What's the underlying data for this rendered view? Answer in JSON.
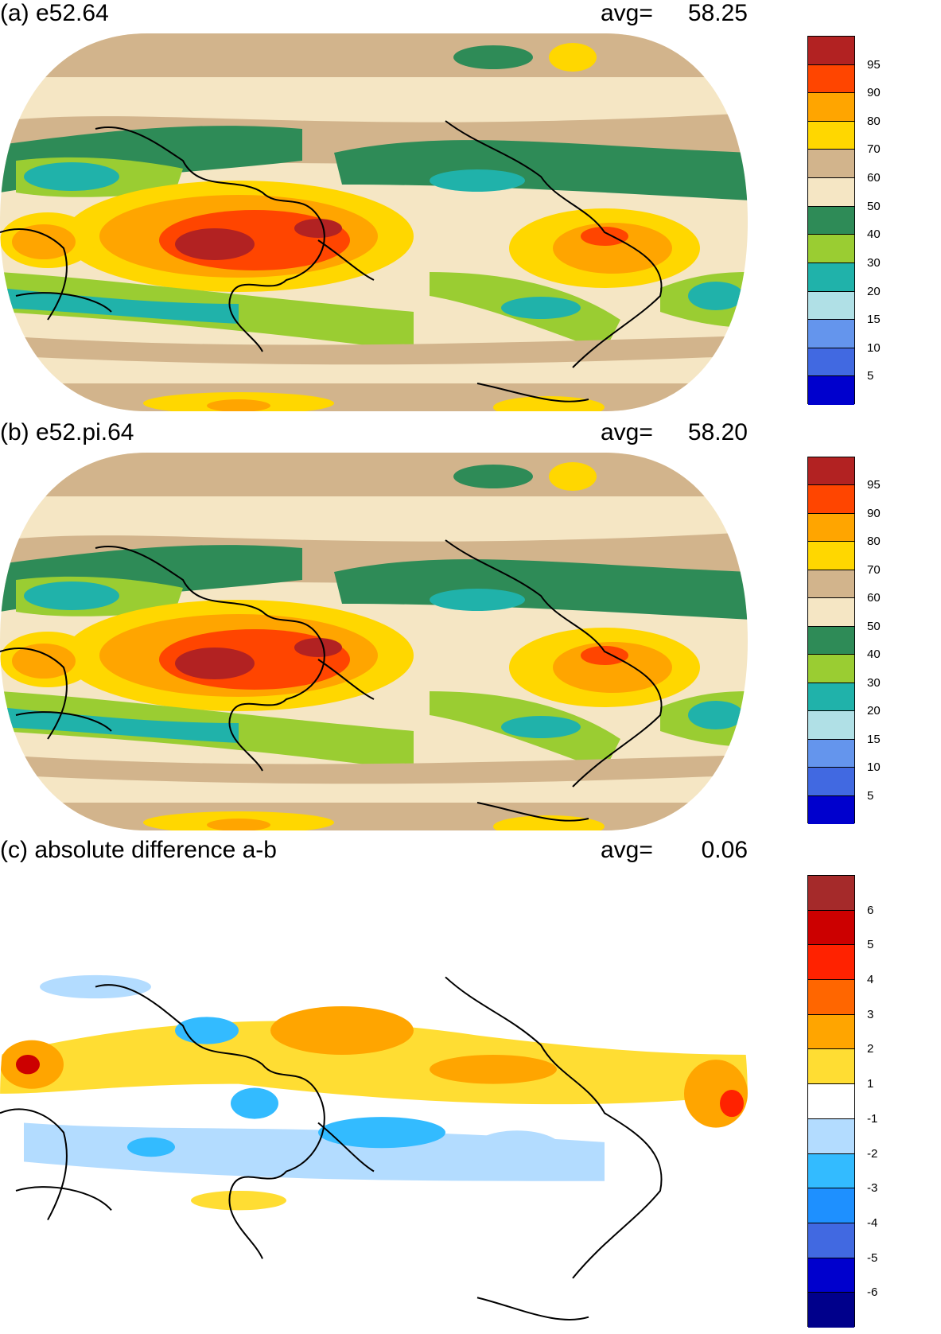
{
  "panels": [
    {
      "title": "(a) e52.64",
      "avg_label": "avg=",
      "avg_value": "58.25",
      "colorbar": {
        "labels": [
          "95",
          "90",
          "80",
          "70",
          "60",
          "50",
          "40",
          "30",
          "20",
          "15",
          "10",
          "5"
        ],
        "colors": [
          "#b22222",
          "#ff4500",
          "#ffa500",
          "#ffd700",
          "#d2b48c",
          "#f5e6c4",
          "#2e8b57",
          "#9acd32",
          "#20b2aa",
          "#b0e0e6",
          "#6495ed",
          "#4169e1",
          "#0000cd"
        ]
      }
    },
    {
      "title": "(b) e52.pi.64",
      "avg_label": "avg=",
      "avg_value": "58.20",
      "colorbar": {
        "labels": [
          "95",
          "90",
          "80",
          "70",
          "60",
          "50",
          "40",
          "30",
          "20",
          "15",
          "10",
          "5"
        ],
        "colors": [
          "#b22222",
          "#ff4500",
          "#ffa500",
          "#ffd700",
          "#d2b48c",
          "#f5e6c4",
          "#2e8b57",
          "#9acd32",
          "#20b2aa",
          "#b0e0e6",
          "#6495ed",
          "#4169e1",
          "#0000cd"
        ]
      }
    },
    {
      "title": "(c) absolute difference a-b",
      "avg_label": "avg=",
      "avg_value": "0.06",
      "colorbar": {
        "labels": [
          "6",
          "5",
          "4",
          "3",
          "2",
          "1",
          "-1",
          "-2",
          "-3",
          "-4",
          "-5",
          "-6"
        ],
        "colors": [
          "#a52a2a",
          "#cc0000",
          "#ff2200",
          "#ff6600",
          "#ffa500",
          "#ffdd33",
          "#ffffff",
          "#b3dcff",
          "#33bbff",
          "#1e90ff",
          "#4169e1",
          "#0000cd",
          "#00008b"
        ]
      }
    }
  ]
}
